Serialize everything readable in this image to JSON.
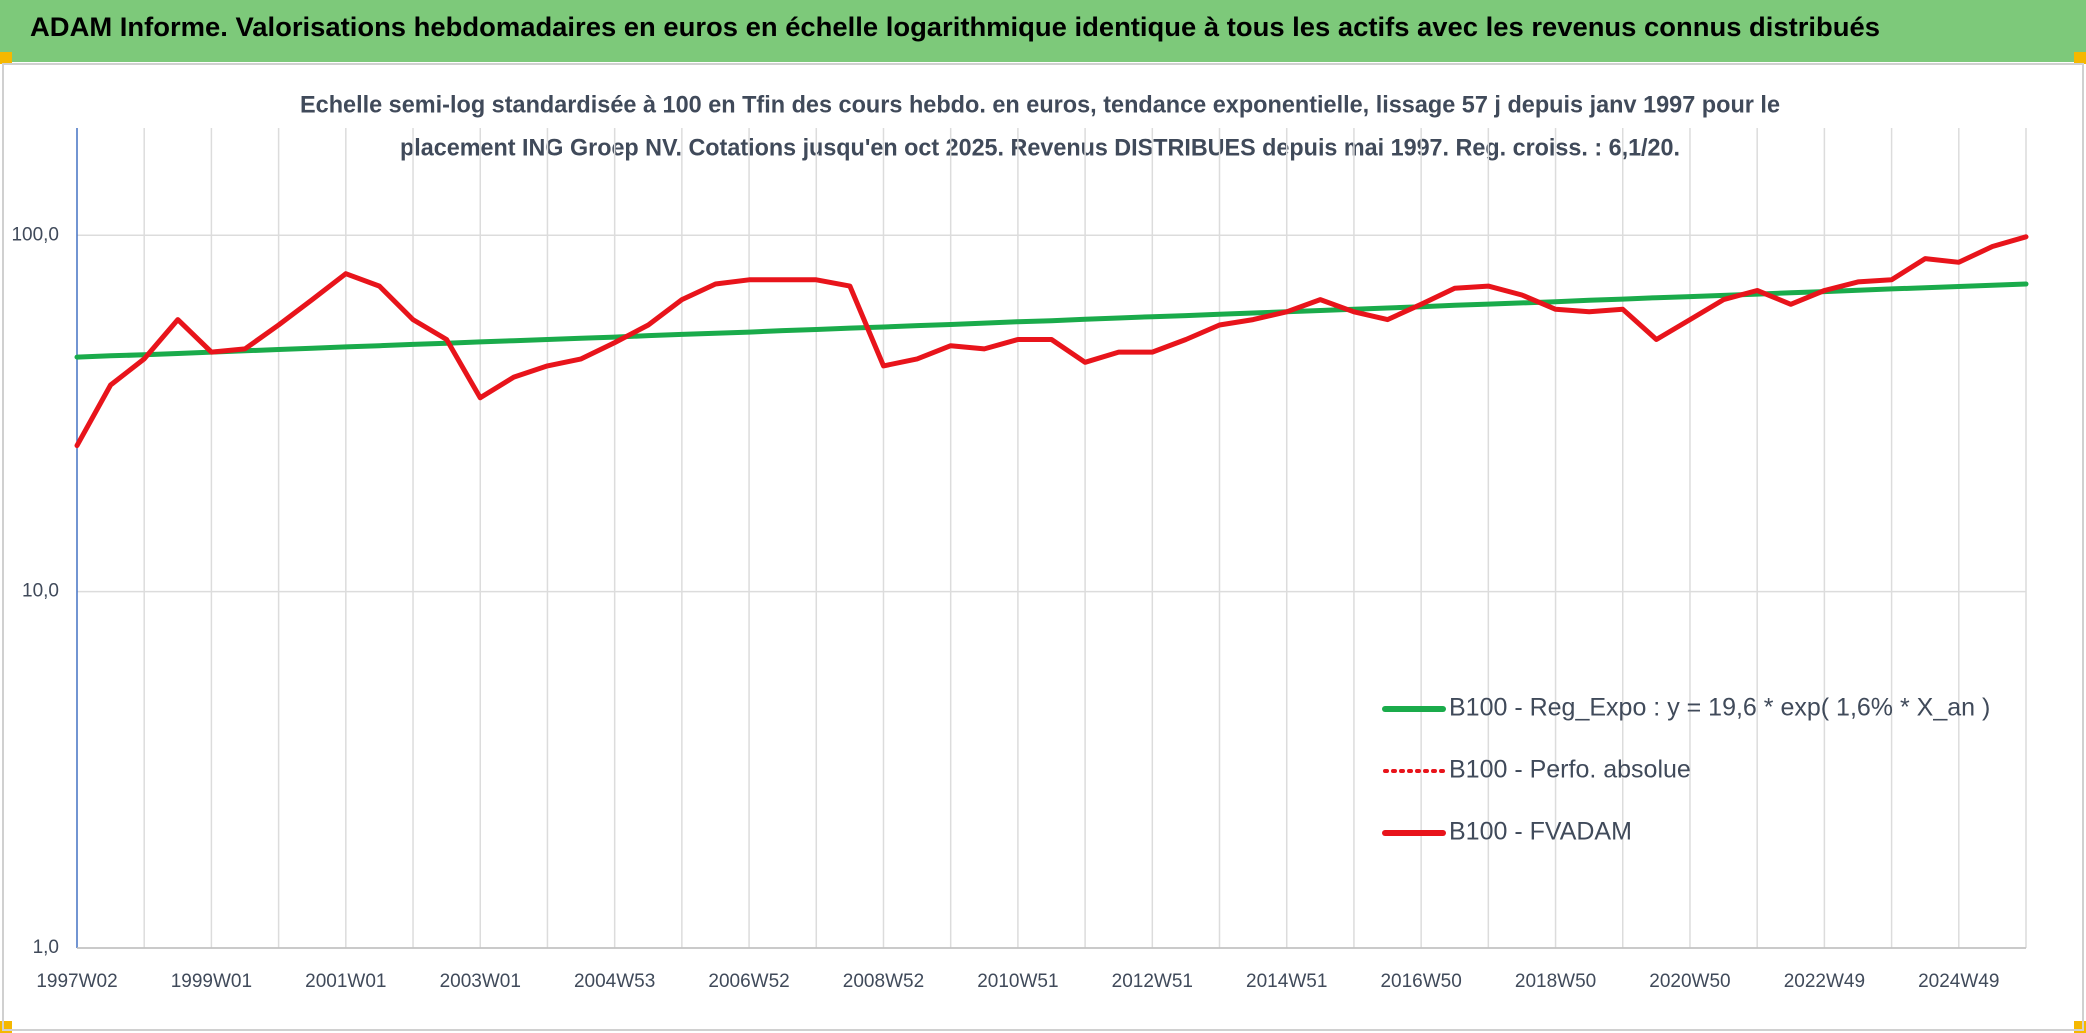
{
  "chart_data": {
    "type": "line",
    "title": "ADAM Informe. Valorisations hebdomadaires en euros en échelle logarithmique identique à tous les actifs avec les revenus connus distribués",
    "subtitle": [
      "Echelle semi-log standardisée à 100 en Tfin des cours hebdo. en euros, tendance exponentielle, lissage 57 j depuis janv 1997 pour le",
      "placement ING Groep NV. Cotations jusqu'en oct 2025. Revenus DISTRIBUES depuis mai 1997. Reg. croiss. : 6,1/20."
    ],
    "categories": [
      "1997W02",
      null,
      null,
      null,
      "1999W01",
      null,
      null,
      null,
      "2001W01",
      null,
      null,
      null,
      "2003W01",
      null,
      null,
      null,
      "2004W53",
      null,
      null,
      null,
      "2006W52",
      null,
      null,
      null,
      "2008W52",
      null,
      null,
      null,
      "2010W51",
      null,
      null,
      null,
      "2012W51",
      null,
      null,
      null,
      "2014W51",
      null,
      null,
      null,
      "2016W50",
      null,
      null,
      null,
      "2018W50",
      null,
      null,
      null,
      "2020W50",
      null,
      null,
      null,
      "2022W49",
      null,
      null,
      null,
      "2024W49",
      null,
      null
    ],
    "series": [
      {
        "name": "B100 - Reg_Expo : y = 19,6 * exp( 1,6% *  X_an )",
        "color": "#1aab4b",
        "style": "solid",
        "values": [
          45.5,
          45.9,
          46.2,
          46.6,
          47.0,
          47.4,
          47.8,
          48.2,
          48.6,
          49.0,
          49.4,
          49.8,
          50.2,
          50.6,
          51.0,
          51.4,
          51.8,
          52.3,
          52.7,
          53.1,
          53.5,
          54.0,
          54.4,
          54.9,
          55.3,
          55.8,
          56.2,
          56.7,
          57.2,
          57.6,
          58.1,
          58.6,
          59.1,
          59.5,
          60.0,
          60.5,
          61.0,
          61.5,
          62.0,
          62.5,
          63.0,
          63.6,
          64.1,
          64.6,
          65.1,
          65.7,
          66.2,
          66.8,
          67.3,
          67.8,
          68.4,
          69.0,
          69.5,
          70.1,
          70.7,
          71.2,
          71.8,
          72.4,
          73.0
        ]
      },
      {
        "name": "B100 - Perfo. absolue",
        "color": "#e8141b",
        "style": "dotted",
        "values": [
          25.7,
          38,
          45,
          58,
          47,
          48,
          56,
          66,
          78,
          72,
          58,
          51,
          35,
          40,
          43,
          45,
          50,
          56,
          66,
          73,
          75,
          75,
          75,
          72,
          43,
          45,
          49,
          48,
          51,
          51,
          44,
          47,
          47,
          51,
          56,
          58,
          61,
          66,
          61,
          58,
          64,
          71,
          72,
          68,
          62,
          61,
          62,
          51,
          58,
          66,
          70,
          64,
          70,
          74,
          75,
          86,
          84,
          93,
          99
        ]
      },
      {
        "name": "B100 - FVADAM",
        "color": "#e8141b",
        "style": "solid",
        "values": [
          25.7,
          38,
          45,
          58,
          47,
          48,
          56,
          66,
          78,
          72,
          58,
          51,
          35,
          40,
          43,
          45,
          50,
          56,
          66,
          73,
          75,
          75,
          75,
          72,
          43,
          45,
          49,
          48,
          51,
          51,
          44,
          47,
          47,
          51,
          56,
          58,
          61,
          66,
          61,
          58,
          64,
          71,
          72,
          68,
          62,
          61,
          62,
          51,
          58,
          66,
          70,
          64,
          70,
          74,
          75,
          86,
          84,
          93,
          99
        ]
      }
    ],
    "ylim": [
      1,
      200
    ],
    "yticks": [
      {
        "value": 1,
        "label": "1,0"
      },
      {
        "value": 10,
        "label": "10,0"
      },
      {
        "value": 100,
        "label": "100,0"
      }
    ],
    "log_y": true,
    "grid": true,
    "legend": "lower right"
  }
}
